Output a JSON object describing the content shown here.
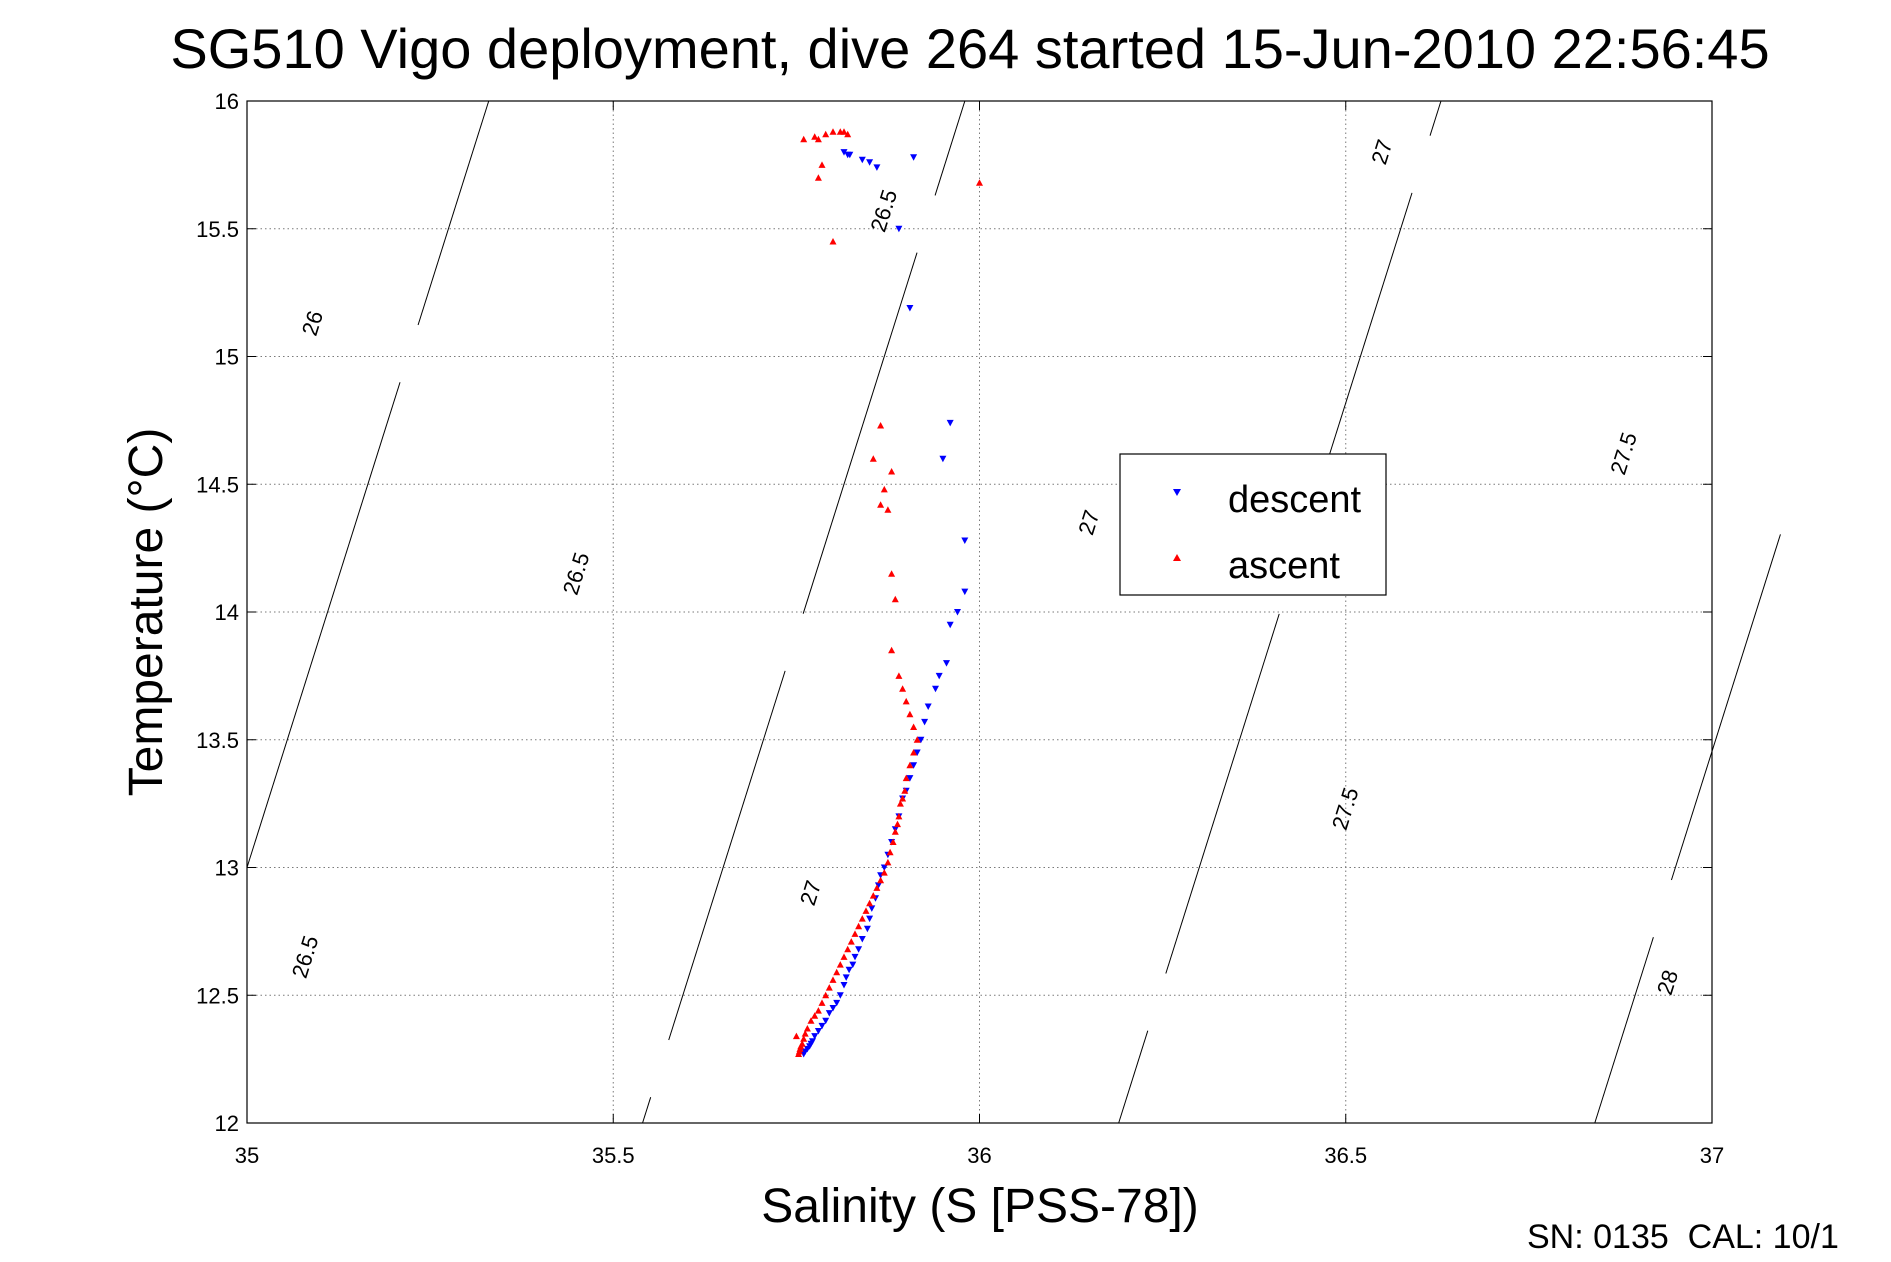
{
  "chart_data": {
    "type": "scatter",
    "title": "SG510 Vigo deployment, dive 264 started 15-Jun-2010 22:56:45",
    "xlabel": "Salinity (S [PSS-78])",
    "ylabel": "Temperature (°C)",
    "xlim": [
      35,
      37
    ],
    "ylim": [
      12,
      16
    ],
    "xticks": [
      35,
      35.5,
      36,
      36.5,
      37
    ],
    "xtick_labels": [
      "35",
      "35.5",
      "36",
      "36.5",
      "37"
    ],
    "yticks": [
      12,
      12.5,
      13,
      13.5,
      14,
      14.5,
      15,
      15.5,
      16
    ],
    "ytick_labels": [
      "12",
      "12.5",
      "13",
      "13.5",
      "14",
      "14.5",
      "15",
      "15.5",
      "16"
    ],
    "grid": true,
    "legend_position": "center-right",
    "footer": "SN: 0135  CAL: 10/1",
    "isopycnals": [
      {
        "label": "26",
        "sigma": 26.0,
        "label_positions": [
          [
            35.09,
            15.13
          ]
        ]
      },
      {
        "label": "26.5",
        "sigma": 26.5,
        "label_positions": [
          [
            35.08,
            12.65
          ],
          [
            35.45,
            14.15
          ],
          [
            35.87,
            15.57
          ]
        ]
      },
      {
        "label": "27",
        "sigma": 27.0,
        "label_positions": [
          [
            35.77,
            12.9
          ],
          [
            36.15,
            14.35
          ],
          [
            36.55,
            15.8
          ]
        ]
      },
      {
        "label": "27.5",
        "sigma": 27.5,
        "label_positions": [
          [
            36.5,
            13.23
          ],
          [
            36.88,
            14.62
          ]
        ]
      },
      {
        "label": "28",
        "sigma": 28.0,
        "label_positions": [
          [
            36.94,
            12.55
          ]
        ]
      }
    ],
    "series": [
      {
        "name": "descent",
        "color": "#0000ff",
        "marker": "triangle-down",
        "x": [
          35.815,
          35.82,
          35.823,
          35.84,
          35.85,
          35.86,
          35.91,
          35.89,
          35.905,
          35.96,
          35.95,
          35.98,
          35.98,
          35.97,
          35.96,
          35.955,
          35.945,
          35.94,
          35.93,
          35.925,
          35.92,
          35.915,
          35.91,
          35.905,
          35.9,
          35.895,
          35.89,
          35.885,
          35.88,
          35.875,
          35.87,
          35.865,
          35.862,
          35.858,
          35.853,
          35.85,
          35.847,
          35.84,
          35.835,
          35.83,
          35.827,
          35.822,
          35.818,
          35.815,
          35.81,
          35.805,
          35.8,
          35.795,
          35.79,
          35.785,
          35.78,
          35.775,
          35.772,
          35.77,
          35.768,
          35.765,
          35.762,
          35.76
        ],
        "y": [
          15.8,
          15.79,
          15.79,
          15.77,
          15.76,
          15.74,
          15.78,
          15.5,
          15.19,
          14.74,
          14.6,
          14.28,
          14.08,
          14.0,
          13.95,
          13.8,
          13.75,
          13.7,
          13.63,
          13.57,
          13.5,
          13.45,
          13.4,
          13.35,
          13.3,
          13.27,
          13.2,
          13.15,
          13.1,
          13.05,
          13.0,
          12.97,
          12.93,
          12.88,
          12.84,
          12.8,
          12.76,
          12.72,
          12.68,
          12.65,
          12.62,
          12.6,
          12.57,
          12.54,
          12.5,
          12.47,
          12.45,
          12.43,
          12.4,
          12.38,
          12.36,
          12.34,
          12.32,
          12.31,
          12.3,
          12.29,
          12.28,
          12.27
        ]
      },
      {
        "name": "ascent",
        "color": "#ff0000",
        "marker": "triangle-up",
        "x": [
          35.76,
          35.775,
          35.78,
          35.79,
          35.8,
          35.81,
          35.815,
          35.82,
          35.78,
          35.785,
          35.8,
          36.0,
          35.865,
          35.855,
          35.88,
          35.865,
          35.87,
          35.875,
          35.88,
          35.885,
          35.88,
          35.89,
          35.895,
          35.9,
          35.905,
          35.91,
          35.915,
          35.91,
          35.905,
          35.9,
          35.898,
          35.895,
          35.892,
          35.89,
          35.888,
          35.885,
          35.882,
          35.878,
          35.875,
          35.87,
          35.865,
          35.86,
          35.855,
          35.85,
          35.845,
          35.84,
          35.835,
          35.83,
          35.825,
          35.82,
          35.815,
          35.81,
          35.805,
          35.8,
          35.795,
          35.79,
          35.785,
          35.78,
          35.775,
          35.77,
          35.765,
          35.762,
          35.76,
          35.758,
          35.756,
          35.755,
          35.754,
          35.753,
          35.75
        ],
        "y": [
          15.85,
          15.86,
          15.85,
          15.87,
          15.88,
          15.88,
          15.88,
          15.87,
          15.7,
          15.75,
          15.45,
          15.68,
          14.73,
          14.6,
          14.55,
          14.42,
          14.48,
          14.4,
          14.15,
          14.05,
          13.85,
          13.75,
          13.7,
          13.65,
          13.6,
          13.55,
          13.5,
          13.45,
          13.4,
          13.35,
          13.3,
          13.27,
          13.25,
          13.2,
          13.17,
          13.14,
          13.1,
          13.06,
          13.02,
          12.98,
          12.95,
          12.92,
          12.89,
          12.86,
          12.83,
          12.8,
          12.77,
          12.74,
          12.71,
          12.68,
          12.65,
          12.62,
          12.59,
          12.56,
          12.53,
          12.5,
          12.47,
          12.44,
          12.42,
          12.4,
          12.37,
          12.35,
          12.33,
          12.31,
          12.3,
          12.29,
          12.28,
          12.27,
          12.34
        ]
      }
    ]
  }
}
